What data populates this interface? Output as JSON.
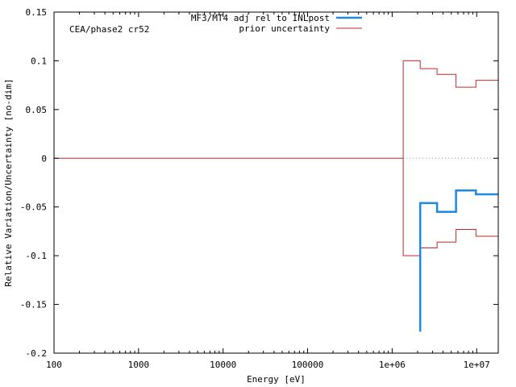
{
  "chart_data": {
    "type": "line",
    "title": "",
    "annotation": "CEA/phase2 cr52",
    "xlabel": "Energy [eV]",
    "ylabel": "Relative Variation/Uncertainty [no-dim]",
    "xscale": "log",
    "xlim": [
      100,
      18000000
    ],
    "ylim": [
      -0.2,
      0.15
    ],
    "grid": false,
    "legend_position": "top-right",
    "x_ticks": [
      {
        "value": 100,
        "label": "100"
      },
      {
        "value": 1000,
        "label": "1000"
      },
      {
        "value": 10000,
        "label": "10000"
      },
      {
        "value": 100000,
        "label": "100000"
      },
      {
        "value": 1000000,
        "label": "1e+06"
      },
      {
        "value": 10000000,
        "label": "1e+07"
      }
    ],
    "y_ticks": [
      {
        "value": 0.15,
        "label": "0.15"
      },
      {
        "value": 0.1,
        "label": "0.1"
      },
      {
        "value": 0.05,
        "label": "0.05"
      },
      {
        "value": 0,
        "label": "0"
      },
      {
        "value": -0.05,
        "label": "-0.05"
      },
      {
        "value": -0.1,
        "label": "-0.1"
      },
      {
        "value": -0.15,
        "label": "-0.15"
      },
      {
        "value": -0.2,
        "label": "-0.2"
      }
    ],
    "series": [
      {
        "name": "MF3/MT4 adj rel to INLpost",
        "color": "#1e88e5",
        "style": "steps",
        "x": [
          2150000,
          2150000,
          3400000,
          3400000,
          5700000,
          5700000,
          9800000,
          9800000,
          18000000
        ],
        "y": [
          -0.178,
          -0.046,
          -0.046,
          -0.055,
          -0.055,
          -0.033,
          -0.033,
          -0.037,
          -0.037
        ]
      },
      {
        "name": "prior uncertainty",
        "color": "#c62828",
        "style": "steps",
        "x": [
          100,
          1350000,
          1350000,
          2150000,
          2150000,
          3400000,
          3400000,
          5700000,
          5700000,
          9800000,
          9800000,
          18000000
        ],
        "y": [
          0,
          0,
          0.1,
          0.1,
          0.092,
          0.092,
          0.086,
          0.086,
          0.073,
          0.073,
          0.08,
          0.08
        ]
      },
      {
        "name": "",
        "color": "#c62828",
        "style": "steps",
        "x": [
          1350000,
          1350000,
          2150000,
          2150000,
          3400000,
          3400000,
          5700000,
          5700000,
          9800000,
          9800000,
          18000000
        ],
        "y": [
          0,
          -0.1,
          -0.1,
          -0.092,
          -0.092,
          -0.086,
          -0.086,
          -0.073,
          -0.073,
          -0.08,
          -0.08
        ]
      }
    ],
    "zero_line": {
      "from_x": 1350000,
      "to_x": 18000000,
      "y": 0,
      "color": "#999999"
    }
  }
}
